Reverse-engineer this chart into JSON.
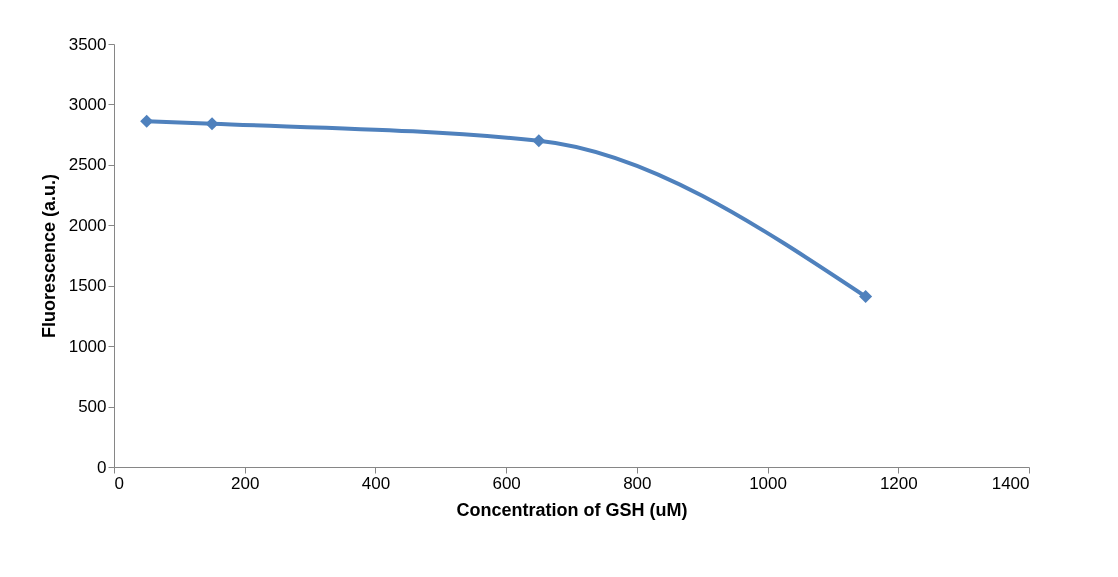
{
  "chart_data": {
    "type": "line",
    "xlabel": "Concentration of GSH (uM)",
    "ylabel": "Fluorescence (a.u.)",
    "x": [
      50,
      150,
      650,
      1150
    ],
    "series": [
      {
        "color": "#4f81bd",
        "values": [
          2860,
          2840,
          2700,
          1410
        ]
      }
    ],
    "xlim": [
      0,
      1400
    ],
    "xticks": [
      0,
      200,
      400,
      600,
      800,
      1000,
      1200,
      1400
    ],
    "ylim": [
      0,
      3500
    ],
    "yticks": [
      0,
      500,
      1000,
      1500,
      2000,
      2500,
      3000,
      3500
    ],
    "grid": false,
    "legend": false,
    "marker": "diamond",
    "line_style": "solid"
  }
}
